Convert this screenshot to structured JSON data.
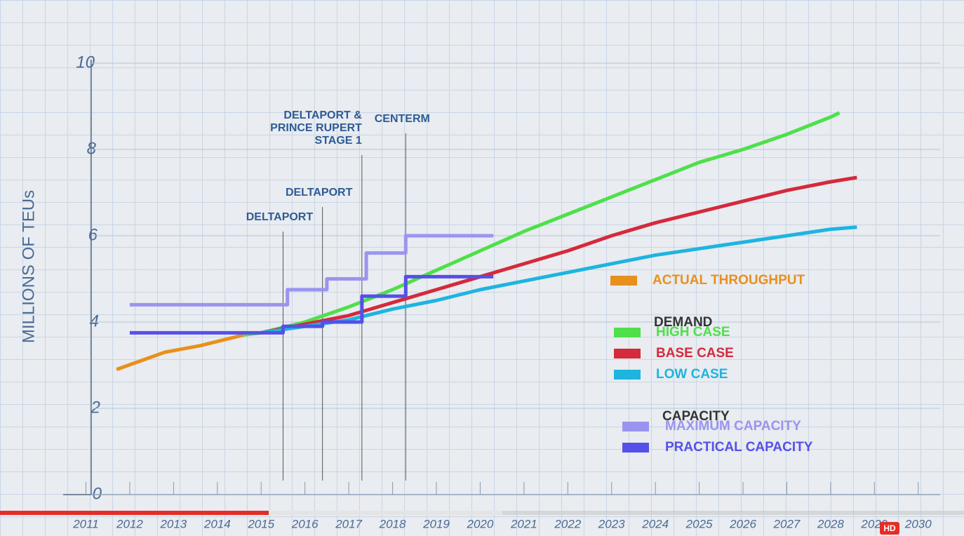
{
  "chart_data": {
    "type": "line",
    "y_label": "MILLIONS OF TEUs",
    "xlim": [
      2010.8,
      2030.5
    ],
    "xticks": [
      2011,
      2012,
      2013,
      2014,
      2015,
      2016,
      2017,
      2018,
      2019,
      2020,
      2021,
      2022,
      2023,
      2024,
      2025,
      2026,
      2027,
      2028,
      2029,
      2030
    ],
    "ylim": [
      0,
      10
    ],
    "yticks": [
      0,
      2,
      4,
      6,
      8,
      10
    ],
    "grid": true,
    "legend_position": "right",
    "series": [
      {
        "name": "ACTUAL THROUGHPUT",
        "color": "#e8901c",
        "x": [
          2011.7,
          2012.8,
          2013.6,
          2014.6
        ],
        "values": [
          2.9,
          3.3,
          3.45,
          3.7
        ]
      },
      {
        "name": "HIGH CASE",
        "group": "DEMAND",
        "color": "#4ee04a",
        "x": [
          2014.6,
          2015,
          2016,
          2017,
          2018,
          2019,
          2020,
          2021,
          2022,
          2023,
          2024,
          2025,
          2026,
          2027,
          2028,
          2028.2
        ],
        "values": [
          3.7,
          3.75,
          4.0,
          4.35,
          4.75,
          5.2,
          5.65,
          6.1,
          6.5,
          6.9,
          7.3,
          7.7,
          8.0,
          8.35,
          8.75,
          8.85
        ]
      },
      {
        "name": "BASE CASE",
        "group": "DEMAND",
        "color": "#d42a3c",
        "x": [
          2015,
          2016,
          2017,
          2018,
          2019,
          2020,
          2021,
          2022,
          2023,
          2024,
          2025,
          2026,
          2027,
          2028,
          2028.6
        ],
        "values": [
          3.75,
          3.95,
          4.15,
          4.45,
          4.75,
          5.05,
          5.35,
          5.65,
          6.0,
          6.3,
          6.55,
          6.8,
          7.05,
          7.25,
          7.35
        ]
      },
      {
        "name": "LOW CASE",
        "group": "DEMAND",
        "color": "#1eb4e0",
        "x": [
          2015,
          2016,
          2017,
          2018,
          2019,
          2020,
          2021,
          2022,
          2023,
          2024,
          2025,
          2026,
          2027,
          2028,
          2028.6
        ],
        "values": [
          3.75,
          3.9,
          4.05,
          4.3,
          4.5,
          4.75,
          4.95,
          5.15,
          5.35,
          5.55,
          5.7,
          5.85,
          6.0,
          6.15,
          6.2
        ]
      },
      {
        "name": "MAXIMUM CAPACITY",
        "group": "CAPACITY",
        "color": "#9a94f0",
        "x": [
          2012,
          2015.6,
          2015.6,
          2016.5,
          2016.5,
          2017.4,
          2017.4,
          2018.3,
          2018.3,
          2020.3
        ],
        "values": [
          4.4,
          4.4,
          4.75,
          4.75,
          5.0,
          5.0,
          5.6,
          5.6,
          6.0,
          6.0
        ]
      },
      {
        "name": "PRACTICAL CAPACITY",
        "group": "CAPACITY",
        "color": "#5550e8",
        "x": [
          2012,
          2015.5,
          2015.5,
          2016.4,
          2016.4,
          2017.3,
          2017.3,
          2018.3,
          2018.3,
          2020.3
        ],
        "values": [
          3.75,
          3.75,
          3.9,
          3.9,
          4.0,
          4.0,
          4.6,
          4.6,
          5.05,
          5.05
        ]
      }
    ],
    "legend_groups": [
      "DEMAND",
      "CAPACITY"
    ],
    "annotations": [
      {
        "x": 2015.5,
        "lines": [
          "DELTAPORT"
        ]
      },
      {
        "x": 2016.4,
        "lines": [
          "DELTAPORT"
        ]
      },
      {
        "x": 2017.3,
        "lines": [
          "DELTAPORT &",
          "PRINCE RUPERT",
          "STAGE 1"
        ]
      },
      {
        "x": 2018.3,
        "lines": [
          "CENTERM"
        ]
      }
    ]
  },
  "player": {
    "badge": "HD"
  }
}
